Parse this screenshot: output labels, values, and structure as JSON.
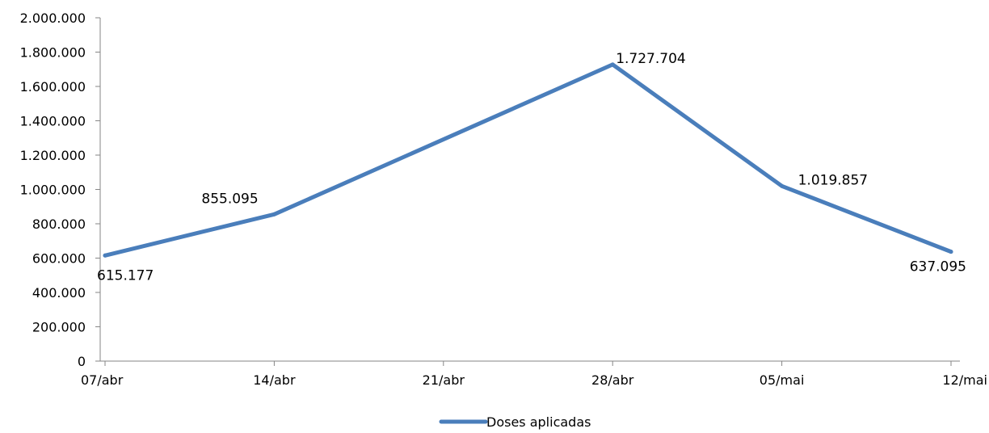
{
  "chart_data": {
    "type": "line",
    "categories": [
      "07/abr",
      "14/abr",
      "21/abr",
      "28/abr",
      "05/mai",
      "12/mai"
    ],
    "series": [
      {
        "name": "Doses aplicadas",
        "values": [
          615177,
          855095,
          null,
          1727704,
          1019857,
          637095
        ],
        "data_labels": [
          "615.177",
          "855.095",
          "",
          "1.727.704",
          "1.019.857",
          "637.095"
        ],
        "color": "#4a7ebb"
      }
    ],
    "y_ticks": [
      "0",
      "200.000",
      "400.000",
      "600.000",
      "800.000",
      "1.000.000",
      "1.200.000",
      "1.400.000",
      "1.600.000",
      "1.800.000",
      "2.000.000"
    ],
    "ylim": [
      0,
      2000000
    ],
    "grid": false,
    "legend_position": "bottom"
  }
}
